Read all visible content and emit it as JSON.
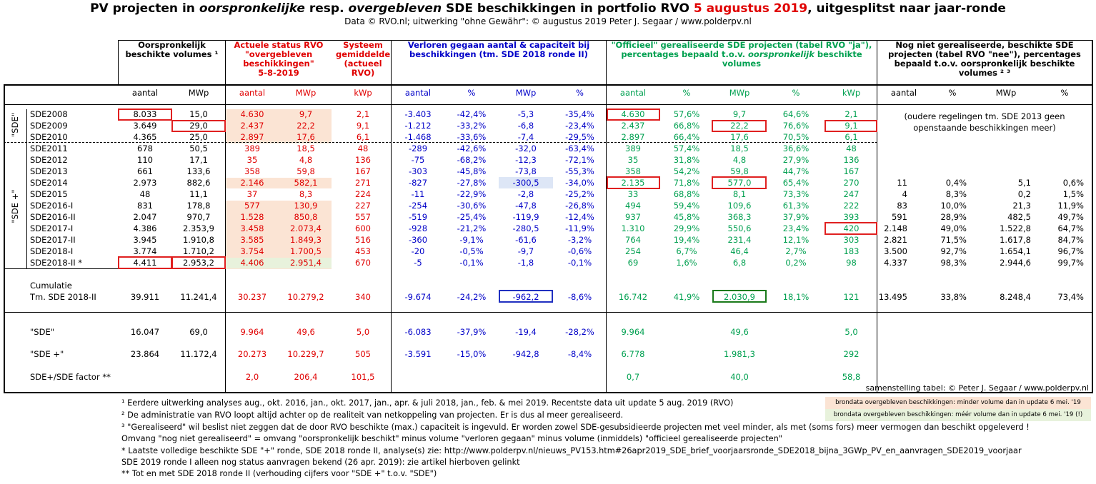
{
  "title": {
    "part1": "PV projecten in ",
    "part2": "oorspronkelijke",
    "part3": " resp. ",
    "part4": "overgebleven",
    "part5": " SDE beschikkingen in portfolio RVO ",
    "date": "5 augustus 2019",
    "part6": ", uitgesplitst naar jaar-ronde"
  },
  "subtitle": "Data © RVO.nl; uitwerking \"ohne Gewähr\": © augustus 2019 Peter J. Segaar / www.polderpv.nl",
  "headers": {
    "orig": "Oorspronkelijk\nbeschikte volumes ¹",
    "actual": "Actuele status RVO\n\"overgebleven\nbeschikkingen\"\n5-8-2019",
    "system": "Systeem\ngemiddelde\n(actueel\nRVO)",
    "lost": "Verloren gegaan aantal & capaciteit bij\nbeschikkingen (tm. SDE 2018 ronde II)",
    "official1": "\"Officieel\" gerealiseerde SDE projecten (tabel RVO \"ja\"),",
    "official2": "percentages bepaald t.o.v. ",
    "official2i": "oorspronkelijk",
    "official2b": " beschikte",
    "official3": "volumes",
    "notyet": "Nog niet gerealiseerde, beschikte SDE\nprojecten (tabel RVO \"nee\"), percentages\nbepaald t.o.v. oorspronkelijk beschikte\nvolumes ² ³"
  },
  "subheaders": [
    "aantal",
    "MWp",
    "aantal",
    "MWp",
    "kWp",
    "aantal",
    "%",
    "MWp",
    "%",
    "aantal",
    "%",
    "MWp",
    "%",
    "kWp",
    "aantal",
    "%",
    "MWp",
    "%"
  ],
  "group_labels": {
    "sde": "\"SDE\"",
    "sdeplus": "\"SDE +\""
  },
  "rows": [
    {
      "label": "SDE2008",
      "v": [
        "8.033",
        "15,0",
        "4.630",
        "9,7",
        "2,1",
        "-3.403",
        "-42,4%",
        "-5,3",
        "-35,4%",
        "4.630",
        "57,6%",
        "9,7",
        "64,6%",
        "2,1",
        "",
        "",
        "",
        ""
      ]
    },
    {
      "label": "SDE2009",
      "v": [
        "3.649",
        "29,0",
        "2.437",
        "22,2",
        "9,1",
        "-1.212",
        "-33,2%",
        "-6,8",
        "-23,4%",
        "2.437",
        "66,8%",
        "22,2",
        "76,6%",
        "9,1",
        "",
        "",
        "",
        ""
      ]
    },
    {
      "label": "SDE2010",
      "v": [
        "4.365",
        "25,0",
        "2.897",
        "17,6",
        "6,1",
        "-1.468",
        "-33,6%",
        "-7,4",
        "-29,5%",
        "2.897",
        "66,4%",
        "17,6",
        "70,5%",
        "6,1",
        "",
        "",
        "",
        ""
      ]
    },
    {
      "label": "SDE2011",
      "v": [
        "678",
        "50,5",
        "389",
        "18,5",
        "48",
        "-289",
        "-42,6%",
        "-32,0",
        "-63,4%",
        "389",
        "57,4%",
        "18,5",
        "36,6%",
        "48",
        "",
        "",
        "",
        ""
      ]
    },
    {
      "label": "SDE2012",
      "v": [
        "110",
        "17,1",
        "35",
        "4,8",
        "136",
        "-75",
        "-68,2%",
        "-12,3",
        "-72,1%",
        "35",
        "31,8%",
        "4,8",
        "27,9%",
        "136",
        "",
        "",
        "",
        ""
      ]
    },
    {
      "label": "SDE2013",
      "v": [
        "661",
        "133,6",
        "358",
        "59,8",
        "167",
        "-303",
        "-45,8%",
        "-73,8",
        "-55,3%",
        "358",
        "54,2%",
        "59,8",
        "44,7%",
        "167",
        "",
        "",
        "",
        ""
      ]
    },
    {
      "label": "SDE2014",
      "v": [
        "2.973",
        "882,6",
        "2.146",
        "582,1",
        "271",
        "-827",
        "-27,8%",
        "-300,5",
        "-34,0%",
        "2.135",
        "71,8%",
        "577,0",
        "65,4%",
        "270",
        "11",
        "0,4%",
        "5,1",
        "0,6%"
      ]
    },
    {
      "label": "SDE2015",
      "v": [
        "48",
        "11,1",
        "37",
        "8,3",
        "224",
        "-11",
        "-22,9%",
        "-2,8",
        "-25,2%",
        "33",
        "68,8%",
        "8,1",
        "73,3%",
        "247",
        "4",
        "8,3%",
        "0,2",
        "1,5%"
      ]
    },
    {
      "label": "SDE2016-I",
      "v": [
        "831",
        "178,8",
        "577",
        "130,9",
        "227",
        "-254",
        "-30,6%",
        "-47,8",
        "-26,8%",
        "494",
        "59,4%",
        "109,6",
        "61,3%",
        "222",
        "83",
        "10,0%",
        "21,3",
        "11,9%"
      ]
    },
    {
      "label": "SDE2016-II",
      "v": [
        "2.047",
        "970,7",
        "1.528",
        "850,8",
        "557",
        "-519",
        "-25,4%",
        "-119,9",
        "-12,4%",
        "937",
        "45,8%",
        "368,3",
        "37,9%",
        "393",
        "591",
        "28,9%",
        "482,5",
        "49,7%"
      ]
    },
    {
      "label": "SDE2017-I",
      "v": [
        "4.386",
        "2.353,9",
        "3.458",
        "2.073,4",
        "600",
        "-928",
        "-21,2%",
        "-280,5",
        "-11,9%",
        "1.310",
        "29,9%",
        "550,6",
        "23,4%",
        "420",
        "2.148",
        "49,0%",
        "1.522,8",
        "64,7%"
      ]
    },
    {
      "label": "SDE2017-II",
      "v": [
        "3.945",
        "1.910,8",
        "3.585",
        "1.849,3",
        "516",
        "-360",
        "-9,1%",
        "-61,6",
        "-3,2%",
        "764",
        "19,4%",
        "231,4",
        "12,1%",
        "303",
        "2.821",
        "71,5%",
        "1.617,8",
        "84,7%"
      ]
    },
    {
      "label": "SDE2018-I",
      "v": [
        "3.774",
        "1.710,2",
        "3.754",
        "1.700,5",
        "453",
        "-20",
        "-0,5%",
        "-9,7",
        "-0,6%",
        "254",
        "6,7%",
        "46,4",
        "2,7%",
        "183",
        "3.500",
        "92,7%",
        "1.654,1",
        "96,7%"
      ]
    },
    {
      "label": "SDE2018-II *",
      "v": [
        "4.411",
        "2.953,2",
        "4.406",
        "2.951,4",
        "670",
        "-5",
        "-0,1%",
        "-1,8",
        "-0,1%",
        "69",
        "1,6%",
        "6,8",
        "0,2%",
        "98",
        "4.337",
        "98,3%",
        "2.944,6",
        "99,7%"
      ]
    }
  ],
  "old_note": "(oudere regelingen tm. SDE 2013 geen\nopenstaande beschikkingen meer)",
  "cumulatie": {
    "label1": "Cumulatie",
    "label2": "Tm. SDE 2018-II",
    "v": [
      "39.911",
      "11.241,4",
      "30.237",
      "10.279,2",
      "340",
      "-9.674",
      "-24,2%",
      "-962,2",
      "-8,6%",
      "16.742",
      "41,9%",
      "2.030,9",
      "18,1%",
      "121",
      "13.495",
      "33,8%",
      "8.248,4",
      "73,4%"
    ]
  },
  "summary": [
    {
      "label": "\"SDE\"",
      "v": [
        "16.047",
        "69,0",
        "9.964",
        "49,6",
        "5,0",
        "-6.083",
        "-37,9%",
        "-19,4",
        "-28,2%",
        "9.964",
        "",
        "49,6",
        "",
        "5,0",
        "",
        "",
        "",
        ""
      ]
    },
    {
      "label": "\"SDE +\"",
      "v": [
        "23.864",
        "11.172,4",
        "20.273",
        "10.229,7",
        "505",
        "-3.591",
        "-15,0%",
        "-942,8",
        "-8,4%",
        "6.778",
        "",
        "1.981,3",
        "",
        "292",
        "",
        "",
        "",
        ""
      ]
    },
    {
      "label": "SDE+/SDE factor **",
      "v": [
        "",
        "",
        "2,0",
        "206,4",
        "101,5",
        "",
        "",
        "",
        "",
        "0,7",
        "",
        "40,0",
        "",
        "58,8",
        "",
        "",
        "",
        ""
      ]
    }
  ],
  "credit": "samenstelling tabel: © Peter J. Segaar / www.polderpv.nl",
  "legend": {
    "pink": "brondata overgebleven beschikkingen: minder volume dan in update 6 mei. '19",
    "green": "brondata overgebleven beschikkingen: méér volume dan in update 6 mei. '19 (!)"
  },
  "footnotes": [
    "¹ Eerdere uitwerking analyses aug., okt. 2016, jan., okt.  2017, jan., apr. & juli 2018, jan., feb. & mei 2019. Recentste data uit update 5 aug. 2019 (RVO)",
    "² De administratie van RVO loopt altijd achter op de realiteit van netkoppeling van projecten. Er is dus al meer gerealiseerd.",
    "³ \"Gerealiseerd\" wil beslist niet zeggen dat de door RVO beschikte (max.) capaciteit is ingevuld. Er worden zowel SDE-gesubsidieerde projecten met veel minder, als met (soms fors) meer vermogen dan beschikt opgeleverd !",
    "Omvang \"nog niet gerealiseerd\" = omvang \"oorspronkelijk beschikt\" minus volume \"verloren gegaan\" minus volume (inmiddels) \"officieel gerealiseerde projecten\"",
    "* Laatste volledige beschikte SDE \"+\" ronde, SDE 2018 ronde II, analyse(s) zie: http://www.polderpv.nl/nieuws_PV153.htm#26apr2019_SDE_brief_voorjaarsronde_SDE2018_bijna_3GWp_PV_en_aanvragen_SDE2019_voorjaar",
    "SDE 2019 ronde I alleen nog status aanvragen bekend (26 apr. 2019): zie artikel hierboven gelinkt",
    "** Tot en met SDE 2018 ronde II (verhouding cijfers voor \"SDE +\" t.o.v. \"SDE\")"
  ],
  "colors": {
    "red": "#e00000",
    "blue": "#0000c8",
    "green": "#00a050",
    "pink": "#fbe4d4",
    "lightgreen": "#e8f2dc"
  }
}
